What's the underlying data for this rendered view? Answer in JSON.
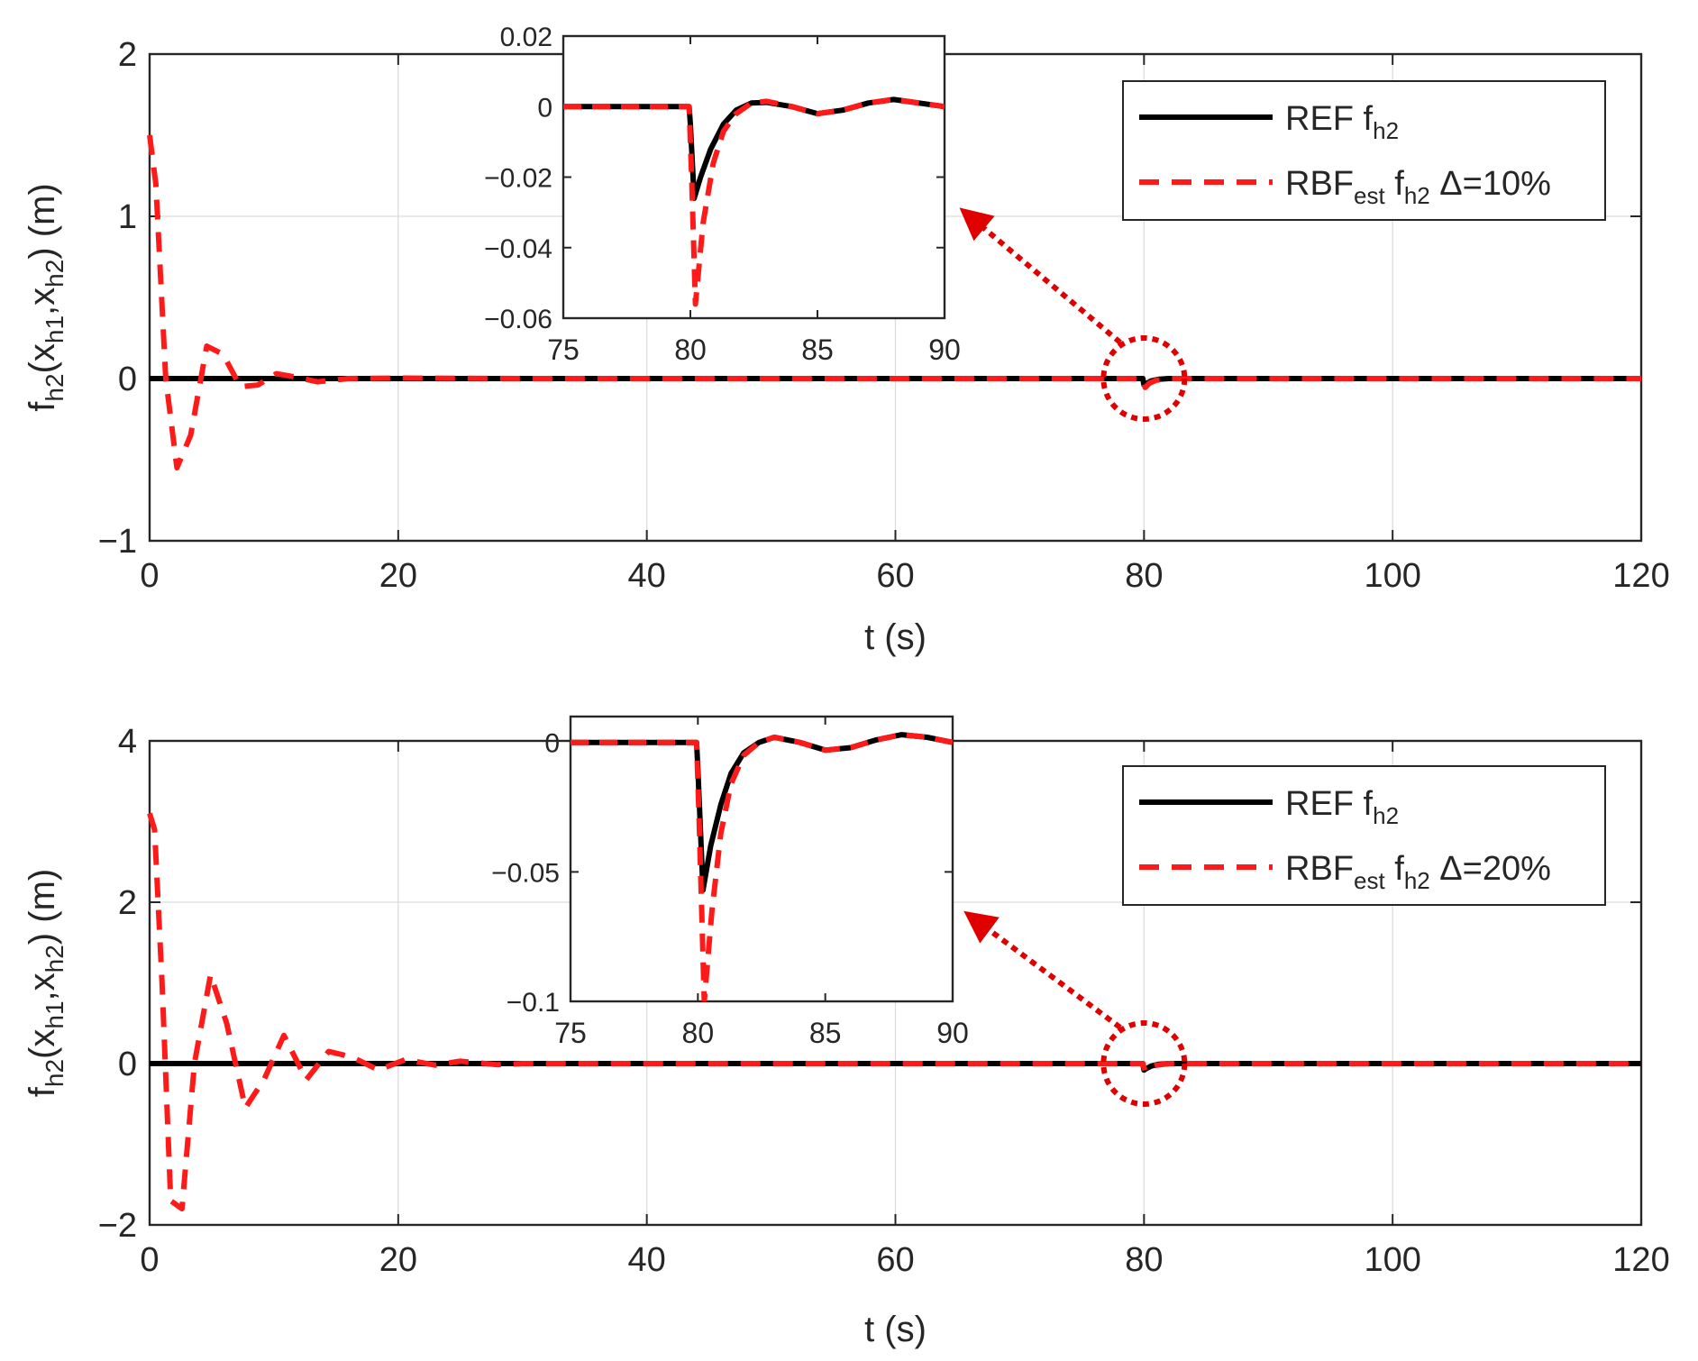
{
  "chart_data": [
    {
      "type": "line",
      "xlabel": "t (s)",
      "ylabel": {
        "base": "f",
        "sub1": "h2",
        "mid1": "(x",
        "sub2": "h1",
        "mid2": ",x",
        "sub3": "h2",
        "tail": ") (m)"
      },
      "xlim": [
        0,
        120
      ],
      "ylim": [
        -1,
        2
      ],
      "xticks": [
        0,
        20,
        40,
        60,
        80,
        100,
        120
      ],
      "yticks": [
        -1,
        0,
        1,
        2
      ],
      "xtick_labels": [
        "0",
        "20",
        "40",
        "60",
        "80",
        "100",
        "120"
      ],
      "ytick_labels": [
        "−1",
        "0",
        "1",
        "2"
      ],
      "grid": true,
      "legend_position": "top-right",
      "series": [
        {
          "id": "ref",
          "color": "#000000",
          "style": "solid",
          "legend": {
            "main": "REF f",
            "sub": "h2",
            "tail": ""
          },
          "x": [
            0,
            79.9,
            80.0,
            80.2,
            80.6,
            81.2,
            82,
            84,
            86,
            88,
            90,
            120
          ],
          "y": [
            0,
            0,
            -0.04,
            -0.03,
            -0.014,
            -0.004,
            0,
            0,
            0,
            0,
            0,
            0
          ]
        },
        {
          "id": "rbf",
          "color": "#ff1a1a",
          "style": "dashed",
          "legend": {
            "main": "RBF",
            "sub": "est",
            "mid": " f",
            "sub2": "h2",
            "tail": " Δ=10%"
          },
          "x": [
            0,
            0.5,
            1.3,
            2.2,
            3.3,
            4.6,
            5.9,
            7.3,
            8.7,
            10.2,
            11.7,
            13.5,
            16,
            20,
            30,
            79.9,
            80.1,
            80.4,
            81,
            82,
            84,
            86,
            88,
            90,
            120
          ],
          "y": [
            1.5,
            1.2,
            0,
            -0.55,
            -0.35,
            0.2,
            0.15,
            -0.05,
            -0.04,
            0.03,
            0.01,
            -0.02,
            0,
            0.003,
            0,
            0,
            -0.055,
            -0.03,
            -0.01,
            0,
            0,
            0,
            0,
            0,
            0
          ]
        }
      ],
      "annotation": {
        "type": "circle-arrow",
        "x": 80,
        "y": 0
      },
      "inset": {
        "xlim": [
          75,
          90
        ],
        "ylim": [
          -0.06,
          0.02
        ],
        "xticks": [
          75,
          80,
          85,
          90
        ],
        "yticks": [
          -0.06,
          -0.04,
          -0.02,
          0,
          0.02
        ],
        "xtick_labels": [
          "75",
          "80",
          "85",
          "90"
        ],
        "ytick_labels": [
          "−0.06",
          "−0.04",
          "−0.02",
          "0",
          "0.02"
        ],
        "series": [
          {
            "color": "#000000",
            "style": "solid",
            "x": [
              75,
              79.95,
              80.0,
              80.15,
              80.4,
              80.8,
              81.3,
              81.8,
              82.4,
              83,
              84,
              85,
              86,
              87,
              88,
              89,
              90
            ],
            "y": [
              0,
              0,
              -0.005,
              -0.026,
              -0.02,
              -0.012,
              -0.005,
              -0.001,
              0.001,
              0.0012,
              0,
              -0.002,
              -0.001,
              0.001,
              0.002,
              0.001,
              0
            ]
          },
          {
            "color": "#ff1a1a",
            "style": "dashed",
            "x": [
              75,
              79.95,
              80.05,
              80.2,
              80.5,
              80.9,
              81.3,
              81.8,
              82.4,
              83,
              84,
              85,
              86,
              87,
              88,
              89,
              90
            ],
            "y": [
              0,
              0,
              -0.02,
              -0.056,
              -0.033,
              -0.016,
              -0.007,
              -0.002,
              0.001,
              0.0015,
              0,
              -0.002,
              -0.001,
              0.001,
              0.002,
              0.001,
              0
            ]
          }
        ]
      }
    },
    {
      "type": "line",
      "xlabel": "t (s)",
      "ylabel": {
        "base": "f",
        "sub1": "h2",
        "mid1": "(x",
        "sub2": "h1",
        "mid2": ",x",
        "sub3": "h2",
        "tail": ") (m)"
      },
      "xlim": [
        0,
        120
      ],
      "ylim": [
        -2,
        4
      ],
      "xticks": [
        0,
        20,
        40,
        60,
        80,
        100,
        120
      ],
      "yticks": [
        -2,
        0,
        2,
        4
      ],
      "xtick_labels": [
        "0",
        "20",
        "40",
        "60",
        "80",
        "100",
        "120"
      ],
      "ytick_labels": [
        "−2",
        "0",
        "2",
        "4"
      ],
      "grid": true,
      "legend_position": "top-right",
      "series": [
        {
          "id": "ref",
          "color": "#000000",
          "style": "solid",
          "legend": {
            "main": "REF f",
            "sub": "h2",
            "tail": ""
          },
          "x": [
            0,
            79.9,
            80.0,
            80.2,
            80.6,
            81.2,
            82,
            84,
            86,
            88,
            90,
            120
          ],
          "y": [
            0,
            0,
            -0.08,
            -0.06,
            -0.03,
            -0.008,
            0,
            0,
            0,
            0,
            0,
            0
          ]
        },
        {
          "id": "rbf",
          "color": "#ff1a1a",
          "style": "dashed",
          "legend": {
            "main": "RBF",
            "sub": "est",
            "mid": " f",
            "sub2": "h2",
            "tail": " Δ=20%"
          },
          "x": [
            0,
            0.4,
            1.0,
            1.7,
            2.6,
            3.6,
            4.9,
            6.2,
            7.7,
            9.2,
            10.8,
            12.6,
            14.4,
            16.3,
            18.4,
            20.6,
            23,
            25,
            28,
            30,
            79.9,
            80.1,
            80.4,
            81,
            82,
            84,
            86,
            88,
            90,
            120
          ],
          "y": [
            3.1,
            2.9,
            1.0,
            -1.7,
            -1.8,
            0,
            1.1,
            0.5,
            -0.55,
            -0.2,
            0.35,
            -0.2,
            0.15,
            0.08,
            -0.08,
            0.05,
            -0.02,
            0.03,
            -0.015,
            0,
            0,
            -0.1,
            -0.06,
            -0.02,
            0,
            0,
            0,
            0,
            0,
            0
          ]
        }
      ],
      "annotation": {
        "type": "circle-arrow",
        "x": 80,
        "y": 0
      },
      "inset": {
        "xlim": [
          75,
          90
        ],
        "ylim": [
          -0.1,
          0.01
        ],
        "xticks": [
          75,
          80,
          85,
          90
        ],
        "yticks": [
          -0.1,
          -0.05,
          0
        ],
        "xtick_labels": [
          "75",
          "80",
          "85",
          "90"
        ],
        "ytick_labels": [
          "−0.1",
          "−0.05",
          "0"
        ],
        "series": [
          {
            "color": "#000000",
            "style": "solid",
            "x": [
              75,
              79.95,
              80.0,
              80.2,
              80.5,
              80.9,
              81.3,
              81.8,
              82.4,
              83,
              84,
              85,
              86,
              87,
              88,
              89,
              90
            ],
            "y": [
              0,
              0,
              -0.01,
              -0.057,
              -0.04,
              -0.024,
              -0.012,
              -0.004,
              0,
              0.002,
              0,
              -0.003,
              -0.002,
              0.001,
              0.003,
              0.002,
              0
            ]
          },
          {
            "color": "#ff1a1a",
            "style": "dashed",
            "x": [
              75,
              79.95,
              80.05,
              80.25,
              80.55,
              80.9,
              81.3,
              81.8,
              82.4,
              83,
              84,
              85,
              86,
              87,
              88,
              89,
              90
            ],
            "y": [
              0,
              0,
              -0.03,
              -0.1,
              -0.065,
              -0.035,
              -0.016,
              -0.005,
              0,
              0.002,
              0,
              -0.003,
              -0.002,
              0.001,
              0.003,
              0.002,
              0
            ]
          }
        ]
      }
    }
  ]
}
